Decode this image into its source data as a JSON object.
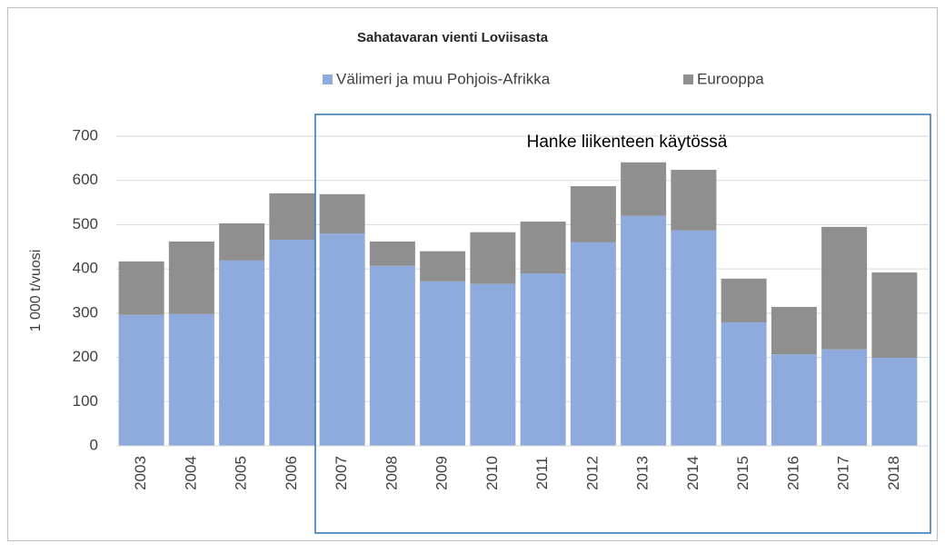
{
  "chart_data": {
    "type": "stacked_bar",
    "title": "Sahatavaran vienti Loviisasta",
    "y_label": "1 000 t/vuosi",
    "annotation": "Hanke liikenteen käytössä",
    "categories": [
      "2003",
      "2004",
      "2005",
      "2006",
      "2007",
      "2008",
      "2009",
      "2010",
      "2011",
      "2012",
      "2013",
      "2014",
      "2015",
      "2016",
      "2017",
      "2018"
    ],
    "series": [
      {
        "name": "Välimeri ja muu Pohjois-Afrikka",
        "color": "#8faadc",
        "values": [
          296,
          298,
          419,
          466,
          480,
          407,
          372,
          366,
          390,
          460,
          520,
          487,
          279,
          207,
          218,
          199
        ]
      },
      {
        "name": "Eurooppa",
        "color": "#8f8f8f",
        "values": [
          121,
          164,
          84,
          105,
          89,
          55,
          68,
          117,
          117,
          127,
          121,
          137,
          99,
          107,
          277,
          193
        ]
      }
    ],
    "ylim": [
      0,
      700
    ],
    "yticks": [
      0,
      100,
      200,
      300,
      400,
      500,
      600,
      700
    ],
    "grid": true
  }
}
